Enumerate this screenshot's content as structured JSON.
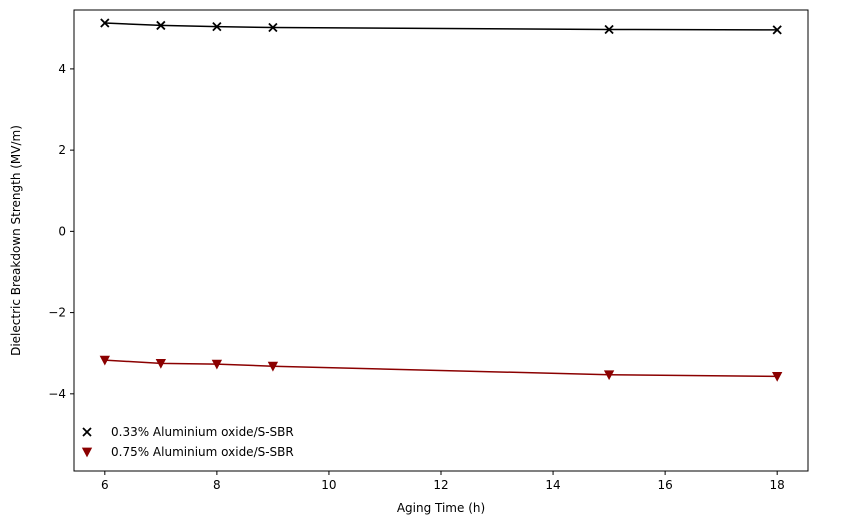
{
  "chart_data": {
    "type": "line",
    "title": "",
    "xlabel": "Aging Time (h)",
    "ylabel": "Dielectric Breakdown Strength (MV/m)",
    "xlim": [
      5.45,
      18.55
    ],
    "ylim": [
      -5.9,
      5.45
    ],
    "xticks": [
      6,
      8,
      10,
      12,
      14,
      16,
      18
    ],
    "yticks": [
      -4,
      -2,
      0,
      2,
      4
    ],
    "grid": false,
    "legend_position": "lower-left",
    "series": [
      {
        "name": "0.33% Aluminium oxide/S-SBR",
        "marker": "x",
        "color": "#000000",
        "x": [
          6,
          7,
          8,
          9,
          15,
          18
        ],
        "y": [
          5.13,
          5.07,
          5.04,
          5.02,
          4.97,
          4.96
        ]
      },
      {
        "name": "0.75% Aluminium oxide/S-SBR",
        "marker": "triangle-down",
        "color": "#8b0000",
        "x": [
          6,
          7,
          8,
          9,
          15,
          18
        ],
        "y": [
          -3.17,
          -3.25,
          -3.27,
          -3.32,
          -3.53,
          -3.57
        ]
      }
    ]
  }
}
